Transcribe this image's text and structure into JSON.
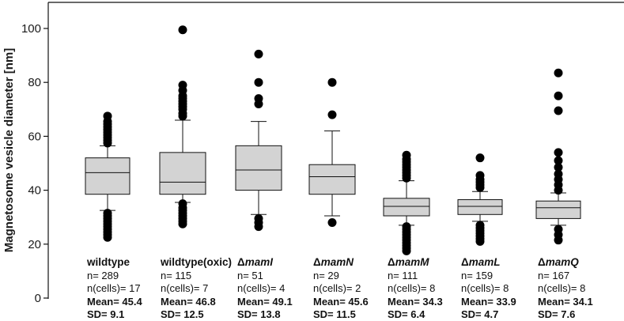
{
  "chart_data": {
    "type": "box",
    "ylabel": "Magnetosome vesicle diameter [nm]",
    "ylim": [
      0,
      110
    ],
    "yticks": [
      0,
      20,
      40,
      60,
      80,
      100
    ],
    "groups": [
      {
        "label": "wildtype",
        "delta": "",
        "italic": false,
        "n": "n= 289",
        "cells": "n(cells)= 17",
        "mean": "Mean= 45.4",
        "sd": "SD= 9.1",
        "q1": 38.5,
        "median": 46.5,
        "q3": 52,
        "whisker_low": 32.5,
        "whisker_high": 56.5,
        "outliers": [
          22.5,
          23.5,
          24.5,
          25.5,
          26.5,
          27.5,
          28.5,
          29.5,
          30.5,
          31.5,
          57.5,
          58.5,
          59.5,
          60.5,
          61.5,
          62.5,
          63.5,
          64.5,
          65.5,
          67.5
        ]
      },
      {
        "label": "wildtype(oxic)",
        "delta": "",
        "italic": false,
        "n": "n= 115",
        "cells": "n(cells)= 7",
        "mean": "Mean= 46.8",
        "sd": "SD= 12.5",
        "q1": 38.5,
        "median": 43,
        "q3": 54,
        "whisker_low": 35.5,
        "whisker_high": 66,
        "outliers": [
          27.5,
          28.5,
          29.5,
          30.5,
          31.5,
          32.5,
          33.5,
          35,
          67.5,
          68.5,
          70,
          71,
          72,
          73,
          74,
          75,
          77,
          79,
          99.5
        ]
      },
      {
        "label": "mamI",
        "delta": "Δ",
        "italic": true,
        "n": "n= 51",
        "cells": "n(cells)= 4",
        "mean": "Mean= 49.1",
        "sd": "SD= 13.8",
        "q1": 40,
        "median": 47.5,
        "q3": 56.5,
        "whisker_low": 31,
        "whisker_high": 65.5,
        "outliers": [
          26.5,
          28,
          29.5,
          72,
          74,
          80,
          90.5
        ]
      },
      {
        "label": "mamN",
        "delta": "Δ",
        "italic": true,
        "n": "n= 29",
        "cells": "n(cells)= 2",
        "mean": "Mean= 45.6",
        "sd": "SD= 11.5",
        "q1": 38.5,
        "median": 45,
        "q3": 49.5,
        "whisker_low": 30.5,
        "whisker_high": 62,
        "outliers": [
          28,
          68,
          80
        ]
      },
      {
        "label": "mamM",
        "delta": "Δ",
        "italic": true,
        "n": "n= 111",
        "cells": "n(cells)= 8",
        "mean": "Mean= 34.3",
        "sd": "SD= 6.4",
        "q1": 30.5,
        "median": 34,
        "q3": 37,
        "whisker_low": 27,
        "whisker_high": 43.5,
        "outliers": [
          17.5,
          18.5,
          19.5,
          20.5,
          21.5,
          22.5,
          23.5,
          24.5,
          25.5,
          26.5,
          44.5,
          45.5,
          46.5,
          47.5,
          48.5,
          49.5,
          50.5,
          51.5,
          53
        ]
      },
      {
        "label": "mamL",
        "delta": "Δ",
        "italic": true,
        "n": "n= 159",
        "cells": "n(cells)= 8",
        "mean": "Mean= 33.9",
        "sd": "SD= 4.7",
        "q1": 31,
        "median": 34,
        "q3": 36.5,
        "whisker_low": 28.5,
        "whisker_high": 39.5,
        "outliers": [
          21,
          22,
          23,
          24,
          25,
          26,
          27,
          41,
          42,
          43,
          44,
          45.5,
          52
        ]
      },
      {
        "label": "mamQ",
        "delta": "Δ",
        "italic": true,
        "n": "n= 167",
        "cells": "n(cells)= 8",
        "mean": "Mean= 34.1",
        "sd": "SD= 7.6",
        "q1": 29.5,
        "median": 33.5,
        "q3": 36,
        "whisker_low": 27,
        "whisker_high": 39,
        "outliers": [
          21.5,
          23.5,
          25.5,
          40,
          42,
          44,
          46,
          48.5,
          51,
          54,
          69.5,
          75,
          83.5
        ]
      }
    ]
  }
}
